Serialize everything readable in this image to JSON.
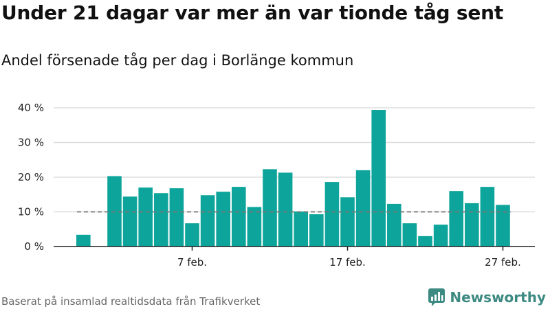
{
  "title": "Under 21 dagar var mer än var tionde tåg sent",
  "subtitle": "Andel försenade tåg per dag i Borlänge kommun",
  "footer": "Baserat på insamlad realtidsdata från Trafikverket",
  "brand": {
    "name": "Newsworthy",
    "icon": "newsworthy-logo-icon",
    "color": "#3c8a82"
  },
  "chart_data": {
    "type": "bar",
    "unit": "%",
    "bar_color": "#0da59b",
    "reference_line": {
      "value": 10,
      "style": "dashed",
      "color": "#777777"
    },
    "ylim": [
      0,
      40
    ],
    "yticks": [
      0,
      10,
      20,
      30,
      40
    ],
    "ytick_labels": [
      "0 %",
      "10 %",
      "20 %",
      "30 %",
      "40 %"
    ],
    "grid": true,
    "x_start": "2021-01-31",
    "xticks": [
      {
        "date": "2021-02-07",
        "label": "7 feb."
      },
      {
        "date": "2021-02-17",
        "label": "17 feb."
      },
      {
        "date": "2021-02-27",
        "label": "27 feb."
      }
    ],
    "x": [
      "2021-01-31",
      "2021-02-01",
      "2021-02-02",
      "2021-02-03",
      "2021-02-04",
      "2021-02-05",
      "2021-02-06",
      "2021-02-07",
      "2021-02-08",
      "2021-02-09",
      "2021-02-10",
      "2021-02-11",
      "2021-02-12",
      "2021-02-13",
      "2021-02-14",
      "2021-02-15",
      "2021-02-16",
      "2021-02-17",
      "2021-02-18",
      "2021-02-19",
      "2021-02-20",
      "2021-02-21",
      "2021-02-22",
      "2021-02-23",
      "2021-02-24",
      "2021-02-25",
      "2021-02-26",
      "2021-02-27",
      "2021-02-28"
    ],
    "values": [
      3.4,
      null,
      20.3,
      14.4,
      17.0,
      15.4,
      16.8,
      6.7,
      14.8,
      15.8,
      17.2,
      11.4,
      22.3,
      21.3,
      10.1,
      9.3,
      18.6,
      14.2,
      22.0,
      39.4,
      12.3,
      6.7,
      3.0,
      6.3,
      16.0,
      12.5,
      17.2,
      12.0,
      null
    ]
  }
}
